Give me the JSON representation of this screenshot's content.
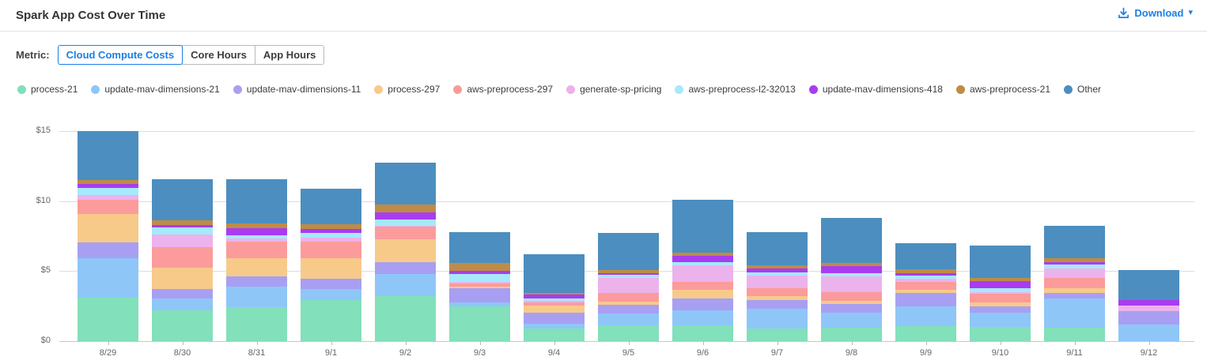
{
  "header": {
    "title": "Spark App Cost Over Time",
    "download_label": "Download",
    "download_icon": "download-icon",
    "caret_glyph": "▾"
  },
  "controls": {
    "metric_label": "Metric:",
    "options": [
      {
        "label": "Cloud Compute Costs",
        "selected": true
      },
      {
        "label": "Core Hours",
        "selected": false
      },
      {
        "label": "App Hours",
        "selected": false
      }
    ]
  },
  "colors": {
    "accent": "#1b7fe4",
    "grid": "#dcdcdc",
    "axis_text": "#666666",
    "title_text": "#333333"
  },
  "chart_data": {
    "type": "bar",
    "stacked": true,
    "title": "Spark App Cost Over Time",
    "xlabel": "",
    "ylabel": "Cloud Compute Costs ($)",
    "ylim": [
      0,
      15.7
    ],
    "grid": true,
    "legend_position": "top",
    "y_ticks": [
      {
        "label": "$0",
        "value": 0
      },
      {
        "label": "$5",
        "value": 5
      },
      {
        "label": "$10",
        "value": 10
      },
      {
        "label": "$15",
        "value": 15
      }
    ],
    "categories": [
      "8/29",
      "8/30",
      "8/31",
      "9/1",
      "9/2",
      "9/3",
      "9/4",
      "9/5",
      "9/6",
      "9/7",
      "9/8",
      "9/9",
      "9/10",
      "9/11",
      "9/12"
    ],
    "series": [
      {
        "name": "process-21",
        "color": "#82e0ba",
        "values": [
          3.1,
          2.2,
          2.4,
          2.9,
          3.2,
          2.45,
          0.85,
          1.1,
          1.1,
          0.88,
          0.93,
          1.05,
          1.0,
          0.93,
          0.0
        ]
      },
      {
        "name": "update-mav-dimensions-21",
        "color": "#8ec6f8",
        "values": [
          2.8,
          0.85,
          1.45,
          0.8,
          1.6,
          0.3,
          0.38,
          0.85,
          1.05,
          1.4,
          1.1,
          1.4,
          1.0,
          2.1,
          1.15
        ]
      },
      {
        "name": "update-mav-dimensions-11",
        "color": "#a89ff2",
        "values": [
          1.15,
          0.65,
          0.75,
          0.75,
          0.85,
          1.0,
          0.75,
          0.63,
          0.9,
          0.65,
          0.6,
          0.98,
          0.45,
          0.4,
          0.95
        ]
      },
      {
        "name": "process-297",
        "color": "#f7ca8a",
        "values": [
          2.0,
          1.5,
          1.3,
          1.45,
          1.6,
          0.15,
          0.53,
          0.23,
          0.6,
          0.24,
          0.25,
          0.24,
          0.32,
          0.34,
          0.0
        ]
      },
      {
        "name": "aws-preprocess-297",
        "color": "#fb9b9b",
        "values": [
          1.05,
          1.5,
          1.2,
          1.2,
          0.9,
          0.2,
          0.26,
          0.6,
          0.57,
          0.57,
          0.6,
          0.57,
          0.62,
          0.75,
          0.0
        ]
      },
      {
        "name": "generate-sp-pricing",
        "color": "#ecb2eb",
        "values": [
          0.3,
          0.9,
          0.2,
          0.3,
          0.1,
          0.1,
          0.1,
          1.1,
          1.2,
          0.94,
          1.1,
          0.19,
          0.1,
          0.66,
          0.42
        ]
      },
      {
        "name": "aws-preprocess-l2-32013",
        "color": "#a5e9fa",
        "values": [
          0.55,
          0.5,
          0.25,
          0.3,
          0.45,
          0.55,
          0.13,
          0.19,
          0.2,
          0.24,
          0.25,
          0.22,
          0.29,
          0.28,
          0.0
        ]
      },
      {
        "name": "update-mav-dimensions-418",
        "color": "#a93cf0",
        "values": [
          0.25,
          0.17,
          0.5,
          0.3,
          0.5,
          0.25,
          0.29,
          0.15,
          0.43,
          0.23,
          0.5,
          0.21,
          0.47,
          0.19,
          0.38
        ]
      },
      {
        "name": "aws-preprocess-21",
        "color": "#be8c46",
        "values": [
          0.3,
          0.37,
          0.35,
          0.35,
          0.55,
          0.55,
          0.15,
          0.19,
          0.23,
          0.23,
          0.24,
          0.23,
          0.24,
          0.23,
          0.0
        ]
      },
      {
        "name": "Other",
        "color": "#4c8ebf",
        "values": [
          3.5,
          2.9,
          3.15,
          2.55,
          3.0,
          2.2,
          2.75,
          2.7,
          3.8,
          2.4,
          3.2,
          1.92,
          2.35,
          2.34,
          2.15
        ]
      }
    ]
  }
}
